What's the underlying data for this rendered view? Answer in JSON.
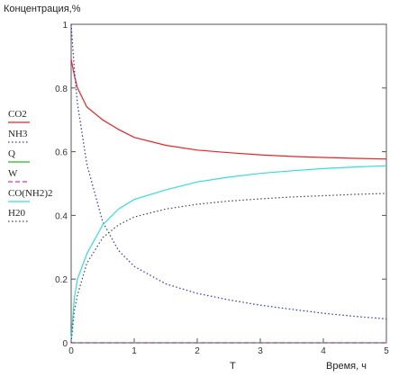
{
  "chart_data": {
    "type": "line",
    "title": "",
    "ylabel": "Концентрация,%",
    "xlabel": "Время, ч",
    "x_variable": "T",
    "xlim": [
      0,
      5
    ],
    "ylim": [
      0,
      1
    ],
    "x_ticks": [
      "0",
      "1",
      "2",
      "3",
      "4",
      "5"
    ],
    "y_ticks": [
      "0",
      "0.2",
      "0.4",
      "0.6",
      "0.8",
      "1"
    ],
    "grid": false,
    "legend_position": "left",
    "x": [
      0,
      0.05,
      0.1,
      0.25,
      0.5,
      0.75,
      1,
      1.5,
      2,
      2.5,
      3,
      3.5,
      4,
      4.5,
      5
    ],
    "series": [
      {
        "name": "CO2",
        "color": "#ee2222",
        "dash": "solid",
        "values": [
          0.89,
          0.84,
          0.8,
          0.74,
          0.7,
          0.67,
          0.645,
          0.62,
          0.605,
          0.597,
          0.59,
          0.585,
          0.582,
          0.579,
          0.577
        ]
      },
      {
        "name": "NH3",
        "color": "#2233cc",
        "dash": "dotted",
        "values": [
          1.0,
          0.86,
          0.75,
          0.56,
          0.38,
          0.29,
          0.24,
          0.185,
          0.155,
          0.135,
          0.118,
          0.105,
          0.093,
          0.083,
          0.075
        ]
      },
      {
        "name": "Q",
        "color": "#22bb22",
        "dash": "solid",
        "values": [
          0,
          0,
          0,
          0,
          0,
          0,
          0,
          0,
          0,
          0,
          0,
          0,
          0,
          0,
          0
        ]
      },
      {
        "name": "W",
        "color": "#cc33cc",
        "dash": "dashed",
        "values": [
          0,
          0,
          0,
          0,
          0,
          0,
          0,
          0,
          0,
          0,
          0,
          0,
          0,
          0,
          0
        ]
      },
      {
        "name": "CO(NH2)2",
        "color": "#33dddd",
        "dash": "solid",
        "values": [
          0.01,
          0.14,
          0.2,
          0.28,
          0.37,
          0.42,
          0.45,
          0.48,
          0.505,
          0.52,
          0.532,
          0.54,
          0.547,
          0.552,
          0.556
        ]
      },
      {
        "name": "H20",
        "color": "#444444",
        "dash": "dotted",
        "values": [
          0,
          0.1,
          0.15,
          0.25,
          0.33,
          0.37,
          0.395,
          0.42,
          0.435,
          0.445,
          0.452,
          0.458,
          0.462,
          0.466,
          0.469
        ]
      }
    ]
  }
}
